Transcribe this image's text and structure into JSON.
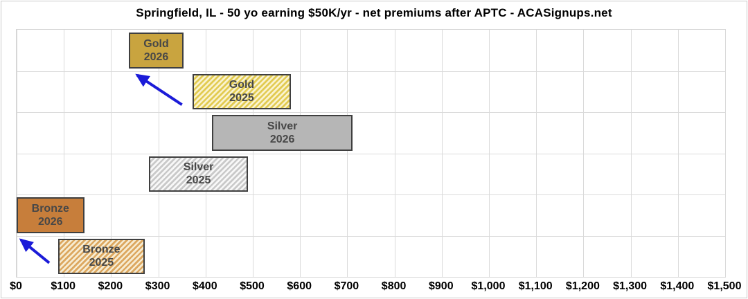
{
  "window": {
    "title": "Springfield, IL - 50 yo earning $50K/yr - net premiums after APTC - ACASignups.net"
  },
  "chart_data": {
    "type": "bar",
    "subtype": "horizontal-range-bars",
    "title": "Springfield, IL - 50 yo earning $50K/yr - net premiums after APTC - ACASignups.net",
    "xlabel": "",
    "ylabel": "",
    "grid": true,
    "legend": "none",
    "x_axis": {
      "min": 0,
      "max": 1500,
      "tick_step": 100,
      "tick_values": [
        0,
        100,
        200,
        300,
        400,
        500,
        600,
        700,
        800,
        900,
        1000,
        1100,
        1200,
        1300,
        1400,
        1500
      ],
      "tick_labels": [
        "$0",
        "$100",
        "$200",
        "$300",
        "$400",
        "$500",
        "$600",
        "$700",
        "$800",
        "$900",
        "$1,000",
        "$1,100",
        "$1,200",
        "$1,300",
        "$1,400",
        "$1,500"
      ]
    },
    "rows": [
      {
        "id": "gold-2026",
        "label_line1": "Gold",
        "label_line2": "2026",
        "plan": "Gold",
        "year": "2026",
        "range_usd": [
          238,
          353
        ],
        "pattern": "solid",
        "fill": "#c9a43f",
        "hatch_bg": "",
        "hatch_stripe": ""
      },
      {
        "id": "gold-2025",
        "label_line1": "Gold",
        "label_line2": "2025",
        "plan": "Gold",
        "year": "2025",
        "range_usd": [
          372,
          581
        ],
        "pattern": "hatch",
        "fill": "",
        "hatch_bg": "#faf3cf",
        "hatch_stripe": "#e2cb52"
      },
      {
        "id": "silver-2026",
        "label_line1": "Silver",
        "label_line2": "2026",
        "plan": "Silver",
        "year": "2026",
        "range_usd": [
          414,
          711
        ],
        "pattern": "solid",
        "fill": "#b6b6b6",
        "hatch_bg": "",
        "hatch_stripe": ""
      },
      {
        "id": "silver-2025",
        "label_line1": "Silver",
        "label_line2": "2025",
        "plan": "Silver",
        "year": "2025",
        "range_usd": [
          280,
          490
        ],
        "pattern": "hatch",
        "fill": "",
        "hatch_bg": "#f8f8f8",
        "hatch_stripe": "#c9c9c9"
      },
      {
        "id": "bronze-2026",
        "label_line1": "Bronze",
        "label_line2": "2026",
        "plan": "Bronze",
        "year": "2026",
        "range_usd": [
          0,
          143
        ],
        "pattern": "solid",
        "fill": "#c77e3b",
        "hatch_bg": "",
        "hatch_stripe": ""
      },
      {
        "id": "bronze-2025",
        "label_line1": "Bronze",
        "label_line2": "2025",
        "plan": "Bronze",
        "year": "2025",
        "range_usd": [
          88,
          271
        ],
        "pattern": "hatch",
        "fill": "#f7ecd2",
        "hatch_bg": "#f7ecd2",
        "hatch_stripe": "#dca75f"
      }
    ],
    "arrows": [
      {
        "from": {
          "value": 350,
          "row": 1.82
        },
        "to": {
          "value": 255,
          "row": 1.1
        }
      },
      {
        "from": {
          "value": 69,
          "row": 5.66
        },
        "to": {
          "value": 9,
          "row": 5.1
        }
      }
    ]
  },
  "colors": {
    "arrow": "#1b1bd8",
    "bar_border": "#3f3f3f",
    "grid": "#dadada",
    "bar_text": "#474747",
    "axis_text": "#000000",
    "title_text": "#000000"
  }
}
